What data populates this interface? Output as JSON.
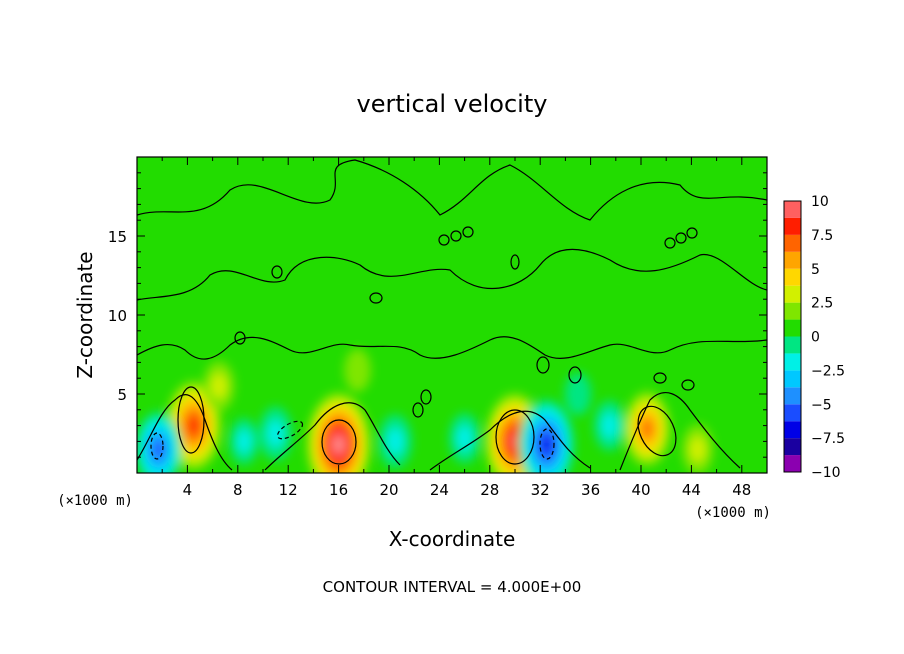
{
  "chart_data": {
    "type": "heatmap",
    "title": "vertical velocity",
    "xlabel": "X-coordinate",
    "ylabel": "Z-coordinate",
    "x_unit_left": "(×1000 m)",
    "x_unit_right": "(×1000 m)",
    "xlim": [
      0,
      50
    ],
    "ylim": [
      0,
      20
    ],
    "xticks": [
      "4",
      "8",
      "12",
      "16",
      "20",
      "24",
      "28",
      "32",
      "36",
      "40",
      "44",
      "48"
    ],
    "yticks": [
      "5",
      "10",
      "15"
    ],
    "contour_interval_text": "CONTOUR INTERVAL = 4.000E+00",
    "colorbar": {
      "range": [
        -10,
        10
      ],
      "tick_labels": [
        "10",
        "7.5",
        "5",
        "2.5",
        "0",
        "−2.5",
        "−5",
        "−7.5",
        "−10"
      ],
      "stops": [
        {
          "value": -10,
          "color": "#8b00b0"
        },
        {
          "value": -8.75,
          "color": "#1a00a0"
        },
        {
          "value": -7.5,
          "color": "#0000e6"
        },
        {
          "value": -6.25,
          "color": "#1a4dff"
        },
        {
          "value": -5,
          "color": "#1e90ff"
        },
        {
          "value": -3.75,
          "color": "#00c8ff"
        },
        {
          "value": -2.5,
          "color": "#00f0e6"
        },
        {
          "value": -1.25,
          "color": "#00e682"
        },
        {
          "value": 0,
          "color": "#22dc00"
        },
        {
          "value": 1.25,
          "color": "#7fe600"
        },
        {
          "value": 2.5,
          "color": "#d2f000"
        },
        {
          "value": 3.75,
          "color": "#ffd700"
        },
        {
          "value": 5,
          "color": "#ffa500"
        },
        {
          "value": 6.25,
          "color": "#ff6400"
        },
        {
          "value": 7.5,
          "color": "#ff1e00"
        },
        {
          "value": 8.75,
          "color": "#ff6060"
        },
        {
          "value": 10,
          "color": "#ff9a9a"
        }
      ]
    },
    "updrafts": [
      {
        "x": 4.5,
        "z": 3.0,
        "w": 8
      },
      {
        "x": 16.0,
        "z": 1.8,
        "w": 10
      },
      {
        "x": 30.0,
        "z": 2.0,
        "w": 9
      },
      {
        "x": 40.5,
        "z": 2.8,
        "w": 6
      },
      {
        "x": 6.5,
        "z": 5.5,
        "w": 2.5
      },
      {
        "x": 17.5,
        "z": 6.5,
        "w": 1.5
      },
      {
        "x": 44.5,
        "z": 1.5,
        "w": 2.5
      }
    ],
    "downdrafts": [
      {
        "x": 1.7,
        "z": 1.5,
        "w": -6
      },
      {
        "x": 32.5,
        "z": 1.8,
        "w": -8
      },
      {
        "x": 11.0,
        "z": 2.5,
        "w": -3
      },
      {
        "x": 20.5,
        "z": 2.0,
        "w": -3
      },
      {
        "x": 26.0,
        "z": 2.2,
        "w": -2.5
      },
      {
        "x": 37.5,
        "z": 3.0,
        "w": -2.5
      },
      {
        "x": 8.5,
        "z": 2.0,
        "w": -2
      },
      {
        "x": 35.0,
        "z": 5.0,
        "w": -1.5
      }
    ]
  }
}
